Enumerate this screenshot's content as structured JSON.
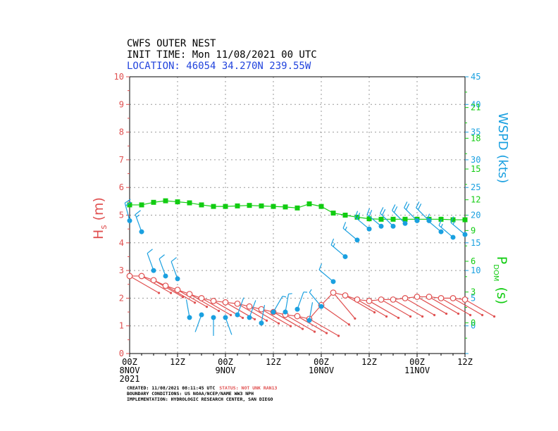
{
  "header": {
    "line1": "CWFS OUTER NEST",
    "line2": "INIT TIME: Mon 11/08/2021 00 UTC",
    "line3": "LOCATION: 46054 34.270N 239.55W"
  },
  "footer": {
    "created_prefix": "CREATED: 11/08/2021 08:11:45 UTC",
    "status": "STATUS: NOT UNK RAN13",
    "boundary": "BOUNDARY CONDITIONS: US NOAA/NCEP/NAME WW3 NPH",
    "implementation": "IMPLEMENTATION: HYDROLOGIC RESEARCH CENTER, SAN DIEGO"
  },
  "colors": {
    "hs": "#e05050",
    "wspd": "#1aa0e0",
    "pdom": "#11cc11",
    "location": "#2244dd",
    "grid": "#999999"
  },
  "chart_data": {
    "type": "line",
    "title": "CWFS OUTER NEST",
    "x_unit": "hours since 2021-11-08 00Z",
    "xlim": [
      0,
      84
    ],
    "x_ticks": [
      {
        "hour": 0,
        "label": "00Z",
        "sub1": "8NOV",
        "sub2": "2021"
      },
      {
        "hour": 12,
        "label": "12Z",
        "sub1": "",
        "sub2": ""
      },
      {
        "hour": 24,
        "label": "00Z",
        "sub1": "9NOV",
        "sub2": ""
      },
      {
        "hour": 36,
        "label": "12Z",
        "sub1": "",
        "sub2": ""
      },
      {
        "hour": 48,
        "label": "00Z",
        "sub1": "10NOV",
        "sub2": ""
      },
      {
        "hour": 60,
        "label": "12Z",
        "sub1": "",
        "sub2": ""
      },
      {
        "hour": 72,
        "label": "00Z",
        "sub1": "11NOV",
        "sub2": ""
      },
      {
        "hour": 84,
        "label": "12Z",
        "sub1": "",
        "sub2": ""
      }
    ],
    "hs": {
      "label_main": "H",
      "label_sub": "s",
      "label_unit": "(m)",
      "ylim": [
        0,
        10
      ],
      "ticks": [
        "0",
        "1",
        "2",
        "3",
        "4",
        "5",
        "6",
        "7",
        "8",
        "9",
        "10"
      ],
      "x": [
        0,
        3,
        6,
        9,
        12,
        15,
        18,
        21,
        24,
        27,
        30,
        33,
        36,
        39,
        42,
        45,
        48,
        51,
        54,
        57,
        60,
        63,
        66,
        69,
        72,
        75,
        78,
        81,
        84
      ],
      "values": [
        2.8,
        2.8,
        2.65,
        2.45,
        2.3,
        2.15,
        2.0,
        1.9,
        1.85,
        1.8,
        1.7,
        1.6,
        1.5,
        1.4,
        1.35,
        1.25,
        1.75,
        2.2,
        2.1,
        1.95,
        1.9,
        1.95,
        1.95,
        2.0,
        2.05,
        2.05,
        2.0,
        2.0,
        1.95
      ],
      "dir_deg": [
        300,
        300,
        300,
        300,
        300,
        300,
        300,
        300,
        300,
        300,
        300,
        300,
        300,
        300,
        300,
        300,
        305,
        320,
        300,
        300,
        300,
        300,
        300,
        300,
        300,
        300,
        300,
        300,
        300
      ]
    },
    "wspd": {
      "label": "WSPD (kts)",
      "ylim": [
        -5,
        45
      ],
      "ticks": [
        "0",
        "5",
        "10",
        "15",
        "20",
        "25",
        "30",
        "35",
        "40",
        "45"
      ],
      "x": [
        0,
        3,
        6,
        9,
        12,
        15,
        18,
        21,
        24,
        27,
        30,
        33,
        36,
        39,
        42,
        45,
        48,
        51,
        54,
        57,
        60,
        63,
        66,
        69,
        72,
        75,
        78,
        81,
        84
      ],
      "values": [
        19,
        17,
        10,
        9,
        8.5,
        1.5,
        2,
        1.5,
        1.5,
        2,
        1.5,
        0.5,
        2.5,
        2.5,
        3,
        1,
        3.5,
        8,
        12.5,
        15.5,
        17.5,
        18,
        18,
        18.5,
        19,
        19,
        17,
        16,
        16.5
      ],
      "dir_deg": [
        345,
        340,
        340,
        340,
        340,
        350,
        200,
        180,
        160,
        20,
        20,
        10,
        30,
        10,
        20,
        10,
        320,
        310,
        310,
        310,
        310,
        310,
        315,
        315,
        315,
        315,
        310,
        310,
        310
      ]
    },
    "pdom": {
      "label_main": "P",
      "label_sub": "DOM",
      "label_unit": "(s)",
      "ylim": [
        -3,
        24
      ],
      "ticks": [
        "0",
        "3",
        "6",
        "9",
        "12",
        "15",
        "18",
        "21"
      ],
      "x": [
        0,
        3,
        6,
        9,
        12,
        15,
        18,
        21,
        24,
        27,
        30,
        33,
        36,
        39,
        42,
        45,
        48,
        51,
        54,
        57,
        60,
        63,
        66,
        69,
        72,
        75,
        78,
        81,
        84
      ],
      "values": [
        11.5,
        11.5,
        11.75,
        11.9,
        11.8,
        11.7,
        11.5,
        11.35,
        11.35,
        11.4,
        11.45,
        11.4,
        11.35,
        11.3,
        11.2,
        11.6,
        11.35,
        10.7,
        10.5,
        10.3,
        10.15,
        10.1,
        10.1,
        10.1,
        10.1,
        10.1,
        10.1,
        10.05,
        10.05
      ]
    }
  }
}
